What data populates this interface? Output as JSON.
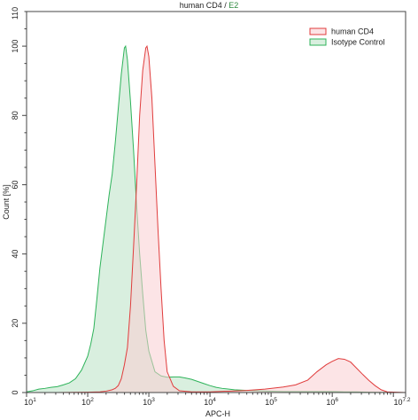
{
  "chart_data": {
    "type": "area",
    "title": "human CD4 / E2",
    "title_parts": [
      "human CD4",
      " / ",
      "E2"
    ],
    "xlabel": "APC-H",
    "ylabel": "Count [%]",
    "xscale": "log",
    "xlim": [
      1.0,
      7.2
    ],
    "ylim": [
      0,
      110
    ],
    "grid": false,
    "legend_position": "top-right",
    "x_ticks": [
      {
        "base": "10",
        "exp": "1",
        "value": 1.0
      },
      {
        "base": "10",
        "exp": "2",
        "value": 2.0
      },
      {
        "base": "10",
        "exp": "3",
        "value": 3.0
      },
      {
        "base": "10",
        "exp": "4",
        "value": 4.0
      },
      {
        "base": "10",
        "exp": "5",
        "value": 5.0
      },
      {
        "base": "10",
        "exp": "6",
        "value": 6.0
      },
      {
        "base": "10",
        "exp": "7.2",
        "value": 7.2
      }
    ],
    "y_ticks": [
      0,
      20,
      40,
      60,
      80,
      100
    ],
    "y_tick_max_label": "110",
    "series": [
      {
        "name": "Isotype Control",
        "color": "#2eb35a",
        "fill": "rgba(170,220,185,0.45)",
        "x": [
          1.0,
          1.1,
          1.2,
          1.3,
          1.4,
          1.5,
          1.6,
          1.7,
          1.8,
          1.9,
          2.0,
          2.05,
          2.1,
          2.15,
          2.2,
          2.25,
          2.3,
          2.35,
          2.4,
          2.45,
          2.5,
          2.55,
          2.6,
          2.62,
          2.65,
          2.7,
          2.75,
          2.8,
          2.85,
          2.9,
          2.95,
          3.0,
          3.05,
          3.1,
          3.2,
          3.3,
          3.4,
          3.5,
          3.6,
          3.7,
          3.8,
          3.9,
          4.0,
          4.1,
          4.2,
          4.4,
          4.6,
          4.8,
          5.0,
          5.2,
          5.4,
          5.6,
          5.8,
          6.0,
          6.2,
          6.4,
          6.6,
          7.2
        ],
        "y": [
          0.2,
          0.5,
          1.0,
          1.2,
          1.5,
          1.7,
          2.2,
          2.8,
          4.0,
          6.5,
          10.5,
          14.0,
          18.5,
          27.0,
          36.0,
          43.0,
          50.0,
          57.0,
          63.0,
          72.0,
          82.0,
          92.0,
          99.5,
          100.0,
          96.0,
          84.0,
          70.0,
          54.0,
          40.0,
          28.5,
          18.0,
          12.0,
          9.0,
          6.0,
          4.8,
          4.4,
          4.5,
          4.5,
          4.2,
          3.8,
          3.2,
          2.6,
          2.0,
          1.5,
          1.2,
          0.8,
          0.6,
          0.5,
          0.4,
          0.3,
          0.3,
          0.3,
          0.3,
          0.3,
          0.2,
          0.2,
          0.1,
          0.0
        ]
      },
      {
        "name": "human CD4",
        "color": "#e03c3c",
        "fill": "rgba(250,205,210,0.55)",
        "x": [
          1.0,
          1.5,
          2.0,
          2.2,
          2.3,
          2.4,
          2.45,
          2.5,
          2.55,
          2.6,
          2.65,
          2.7,
          2.75,
          2.8,
          2.85,
          2.9,
          2.95,
          2.97,
          3.0,
          3.05,
          3.1,
          3.15,
          3.2,
          3.25,
          3.3,
          3.4,
          3.5,
          3.7,
          4.0,
          4.3,
          4.6,
          4.9,
          5.2,
          5.4,
          5.6,
          5.75,
          5.9,
          6.0,
          6.1,
          6.2,
          6.3,
          6.4,
          6.5,
          6.6,
          6.7,
          6.8,
          6.9,
          7.2
        ],
        "y": [
          0.0,
          0.0,
          0.1,
          0.2,
          0.4,
          0.8,
          1.2,
          2.0,
          4.0,
          8.0,
          13.0,
          25.0,
          42.0,
          60.0,
          80.0,
          93.0,
          99.5,
          100.0,
          97.0,
          85.0,
          66.0,
          47.0,
          30.0,
          15.0,
          6.0,
          1.8,
          0.5,
          0.2,
          0.2,
          0.4,
          0.6,
          1.0,
          1.6,
          2.2,
          3.6,
          6.0,
          8.0,
          9.0,
          9.8,
          9.6,
          8.8,
          7.0,
          5.2,
          3.5,
          2.0,
          0.8,
          0.2,
          0.0
        ]
      }
    ]
  }
}
